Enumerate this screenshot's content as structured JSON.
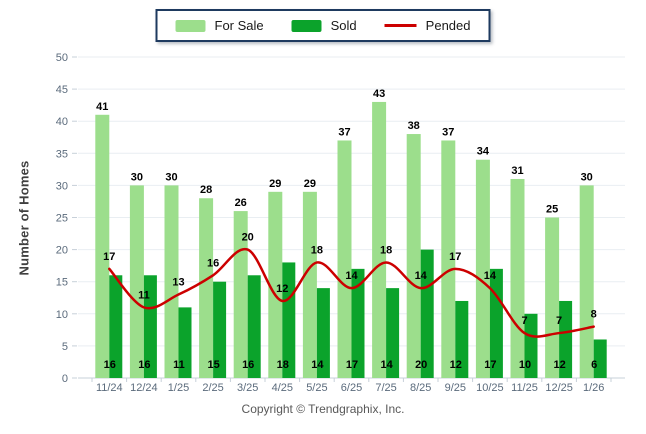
{
  "legend": {
    "items": [
      {
        "label": "For Sale",
        "swatch": "bar",
        "series": "for_sale"
      },
      {
        "label": "Sold",
        "swatch": "bar",
        "series": "sold"
      },
      {
        "label": "Pended",
        "swatch": "line",
        "series": "pended"
      }
    ]
  },
  "footer": "Copyright © Trendgraphix, Inc.",
  "colors": {
    "for_sale": "#9CDE8C",
    "sold": "#0BA32B",
    "pended": "#CC0000",
    "grid": "#E9EEF2",
    "axis_line": "#C7D0D9",
    "axis_text": "#5B6B7C",
    "value_label": "#000000",
    "legend_border": "#1E3A5F"
  },
  "chart_data": {
    "type": "bar",
    "subtype": "grouped bars with overlaid smooth line",
    "title": "",
    "xlabel": "",
    "ylabel": "Number of Homes",
    "ylim": [
      0,
      50
    ],
    "ytick_step": 5,
    "grid": true,
    "legend_position": "top-center",
    "categories": [
      "11/24",
      "12/24",
      "1/25",
      "2/25",
      "3/25",
      "4/25",
      "5/25",
      "6/25",
      "7/25",
      "8/25",
      "9/25",
      "10/25",
      "11/25",
      "12/25",
      "1/26"
    ],
    "series": [
      {
        "name": "For Sale",
        "type": "bar",
        "values": [
          41,
          30,
          30,
          28,
          26,
          29,
          29,
          37,
          43,
          38,
          37,
          34,
          31,
          25,
          30
        ]
      },
      {
        "name": "Sold",
        "type": "bar",
        "values": [
          16,
          16,
          11,
          15,
          16,
          18,
          14,
          17,
          14,
          20,
          12,
          17,
          10,
          12,
          6
        ]
      },
      {
        "name": "Pended",
        "type": "line",
        "values": [
          17,
          11,
          13,
          16,
          20,
          12,
          18,
          14,
          18,
          14,
          17,
          14,
          7,
          7,
          8
        ]
      }
    ]
  }
}
